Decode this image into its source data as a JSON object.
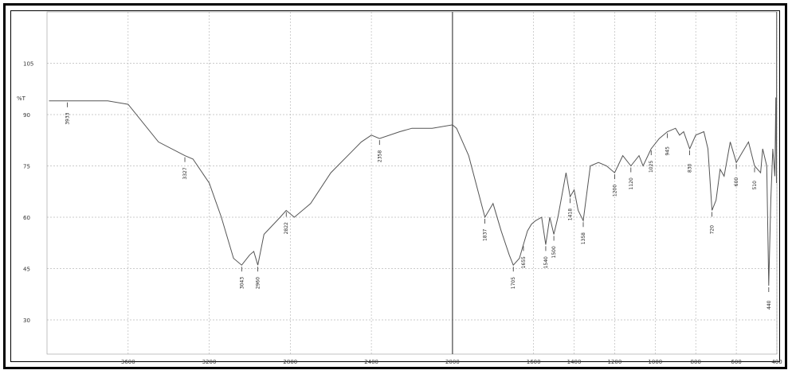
{
  "chart_data": {
    "type": "line",
    "title": "",
    "xlabel": "",
    "ylabel": "%T",
    "x_reversed": true,
    "xlim": [
      4000,
      400
    ],
    "ylim": [
      20,
      120
    ],
    "x_ticks": [
      3600,
      3200,
      2800,
      2400,
      2000,
      1600,
      1400,
      1200,
      1000,
      800,
      600,
      400
    ],
    "x_tick_labels": [
      "3600",
      "3200",
      "2800",
      "2400",
      "2000",
      "1600",
      "1400",
      "1200",
      "1000",
      "800",
      "600",
      "400"
    ],
    "y_ticks": [
      30,
      45,
      60,
      75,
      90,
      105
    ],
    "y_tick_labels": [
      "30",
      "45",
      "60",
      "75",
      "90",
      "105"
    ],
    "grid": true,
    "series": [
      {
        "values": [
          [
            3990,
            94
          ],
          [
            3900,
            94
          ],
          [
            3800,
            94
          ],
          [
            3700,
            94
          ],
          [
            3600,
            93
          ],
          [
            3450,
            82
          ],
          [
            3320,
            78
          ],
          [
            3280,
            77
          ],
          [
            3200,
            70
          ],
          [
            3140,
            60
          ],
          [
            3080,
            48
          ],
          [
            3040,
            46
          ],
          [
            3000,
            49
          ],
          [
            2980,
            50
          ],
          [
            2960,
            46
          ],
          [
            2930,
            55
          ],
          [
            2850,
            60
          ],
          [
            2820,
            62
          ],
          [
            2780,
            60
          ],
          [
            2700,
            64
          ],
          [
            2600,
            73
          ],
          [
            2500,
            79
          ],
          [
            2450,
            82
          ],
          [
            2400,
            84
          ],
          [
            2360,
            83
          ],
          [
            2260,
            85
          ],
          [
            2200,
            86
          ],
          [
            2100,
            86
          ],
          [
            2000,
            87
          ],
          [
            1980,
            86
          ],
          [
            1920,
            78
          ],
          [
            1840,
            60
          ],
          [
            1800,
            64
          ],
          [
            1760,
            56
          ],
          [
            1720,
            49
          ],
          [
            1700,
            46
          ],
          [
            1670,
            48
          ],
          [
            1650,
            52
          ],
          [
            1630,
            56
          ],
          [
            1610,
            58
          ],
          [
            1590,
            59
          ],
          [
            1560,
            60
          ],
          [
            1540,
            52
          ],
          [
            1520,
            60
          ],
          [
            1500,
            55
          ],
          [
            1480,
            60
          ],
          [
            1440,
            73
          ],
          [
            1420,
            66
          ],
          [
            1400,
            68
          ],
          [
            1380,
            62
          ],
          [
            1355,
            59
          ],
          [
            1320,
            75
          ],
          [
            1280,
            76
          ],
          [
            1240,
            75
          ],
          [
            1200,
            73
          ],
          [
            1160,
            78
          ],
          [
            1120,
            75
          ],
          [
            1080,
            78
          ],
          [
            1060,
            75
          ],
          [
            1020,
            80
          ],
          [
            980,
            83
          ],
          [
            940,
            85
          ],
          [
            900,
            86
          ],
          [
            880,
            84
          ],
          [
            860,
            85
          ],
          [
            830,
            80
          ],
          [
            800,
            84
          ],
          [
            760,
            85
          ],
          [
            740,
            80
          ],
          [
            720,
            62
          ],
          [
            700,
            65
          ],
          [
            680,
            74
          ],
          [
            660,
            72
          ],
          [
            630,
            82
          ],
          [
            600,
            76
          ],
          [
            570,
            79
          ],
          [
            540,
            82
          ],
          [
            510,
            75
          ],
          [
            480,
            73
          ],
          [
            470,
            80
          ],
          [
            450,
            75
          ],
          [
            440,
            40
          ],
          [
            430,
            65
          ],
          [
            420,
            80
          ],
          [
            410,
            72
          ],
          [
            405,
            95
          ],
          [
            402,
            70
          ],
          [
            401,
            120
          ]
        ]
      }
    ],
    "peak_labels": [
      {
        "x": 3900,
        "text": "3933"
      },
      {
        "x": 3320,
        "text": "3327"
      },
      {
        "x": 3040,
        "text": "3043"
      },
      {
        "x": 2960,
        "text": "2960"
      },
      {
        "x": 2820,
        "text": "2822"
      },
      {
        "x": 2360,
        "text": "2358"
      },
      {
        "x": 1840,
        "text": "1837"
      },
      {
        "x": 1700,
        "text": "1705"
      },
      {
        "x": 1650,
        "text": "1655"
      },
      {
        "x": 1540,
        "text": "1540"
      },
      {
        "x": 1500,
        "text": "1500"
      },
      {
        "x": 1420,
        "text": "1418"
      },
      {
        "x": 1355,
        "text": "1358"
      },
      {
        "x": 1200,
        "text": "1200"
      },
      {
        "x": 1120,
        "text": "1120"
      },
      {
        "x": 1020,
        "text": "1025"
      },
      {
        "x": 940,
        "text": "945"
      },
      {
        "x": 830,
        "text": "830"
      },
      {
        "x": 720,
        "text": "720"
      },
      {
        "x": 600,
        "text": "600"
      },
      {
        "x": 510,
        "text": "510"
      },
      {
        "x": 440,
        "text": "440"
      }
    ]
  },
  "colors": {
    "trace": "#555555",
    "grid": "#bbbbbb",
    "frame": "#000000",
    "center_line": "#444444"
  }
}
